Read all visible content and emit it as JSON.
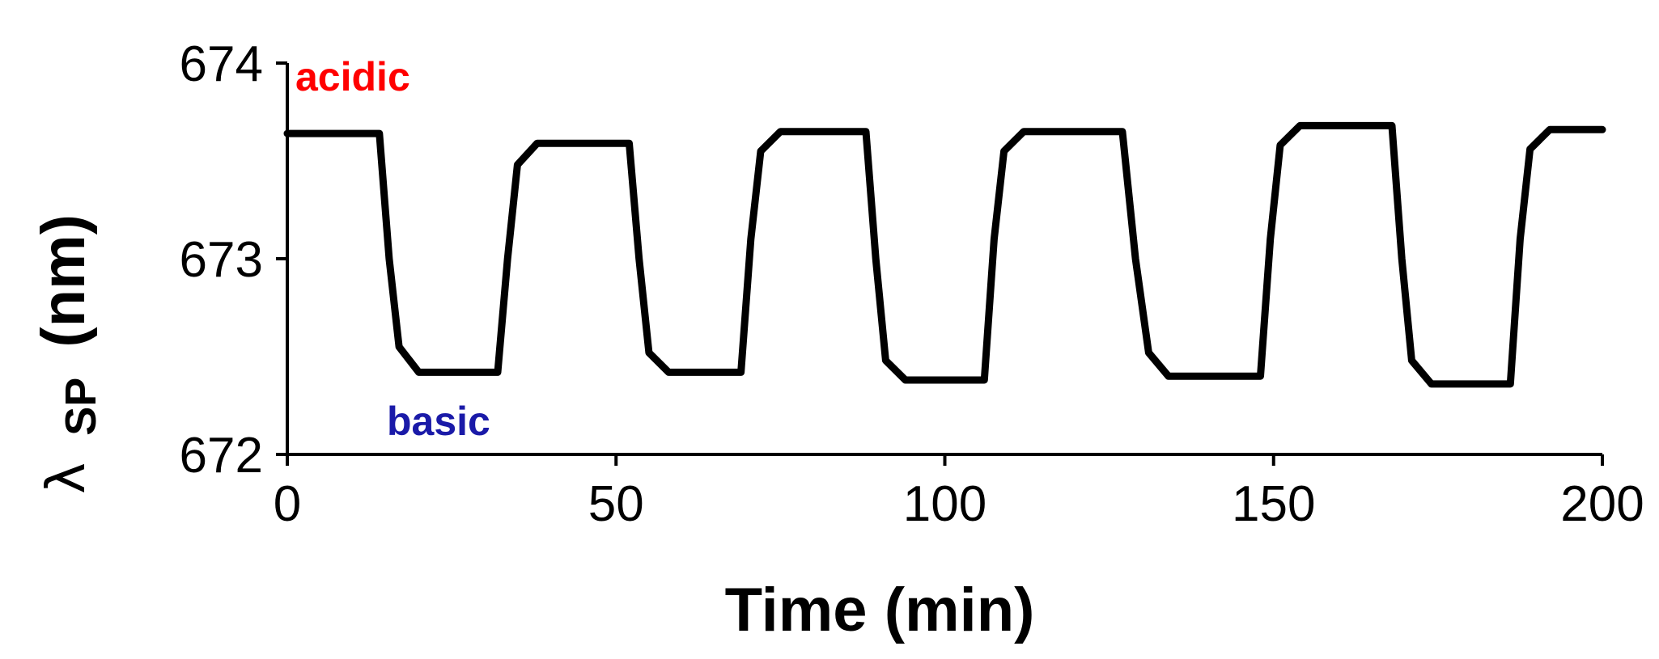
{
  "chart_data": {
    "type": "line",
    "xlabel": "Time (min)",
    "ylabel": {
      "symbol": "λ",
      "subscript": "SP",
      "unit": "(nm)"
    },
    "xlim": [
      0,
      200
    ],
    "ylim": [
      672,
      674
    ],
    "x_ticks": [
      0,
      50,
      100,
      150,
      200
    ],
    "y_ticks": [
      672,
      673,
      674
    ],
    "grid": false,
    "legend": "none",
    "annotations": [
      {
        "text": "acidic",
        "color": "#ff0000"
      },
      {
        "text": "basic",
        "color": "#1a1aa8"
      }
    ],
    "series": [
      {
        "color": "#000000",
        "x": [
          0,
          14,
          15.5,
          17,
          20,
          32,
          33.5,
          35,
          38,
          52,
          53.5,
          55,
          58,
          69,
          70.5,
          72,
          75,
          88,
          89.5,
          91,
          94,
          106,
          107.5,
          109,
          112,
          127,
          129,
          131,
          134,
          148,
          149.5,
          151,
          154,
          168,
          169.5,
          171,
          174,
          186,
          187.5,
          189,
          192,
          200
        ],
        "y": [
          673.64,
          673.64,
          673.0,
          672.55,
          672.42,
          672.42,
          673.0,
          673.48,
          673.59,
          673.59,
          673.0,
          672.52,
          672.42,
          672.42,
          673.1,
          673.55,
          673.65,
          673.65,
          673.0,
          672.48,
          672.38,
          672.38,
          673.1,
          673.55,
          673.65,
          673.65,
          673.0,
          672.52,
          672.4,
          672.4,
          673.1,
          673.58,
          673.68,
          673.68,
          673.0,
          672.48,
          672.36,
          672.36,
          673.1,
          673.56,
          673.66,
          673.66
        ]
      }
    ]
  }
}
